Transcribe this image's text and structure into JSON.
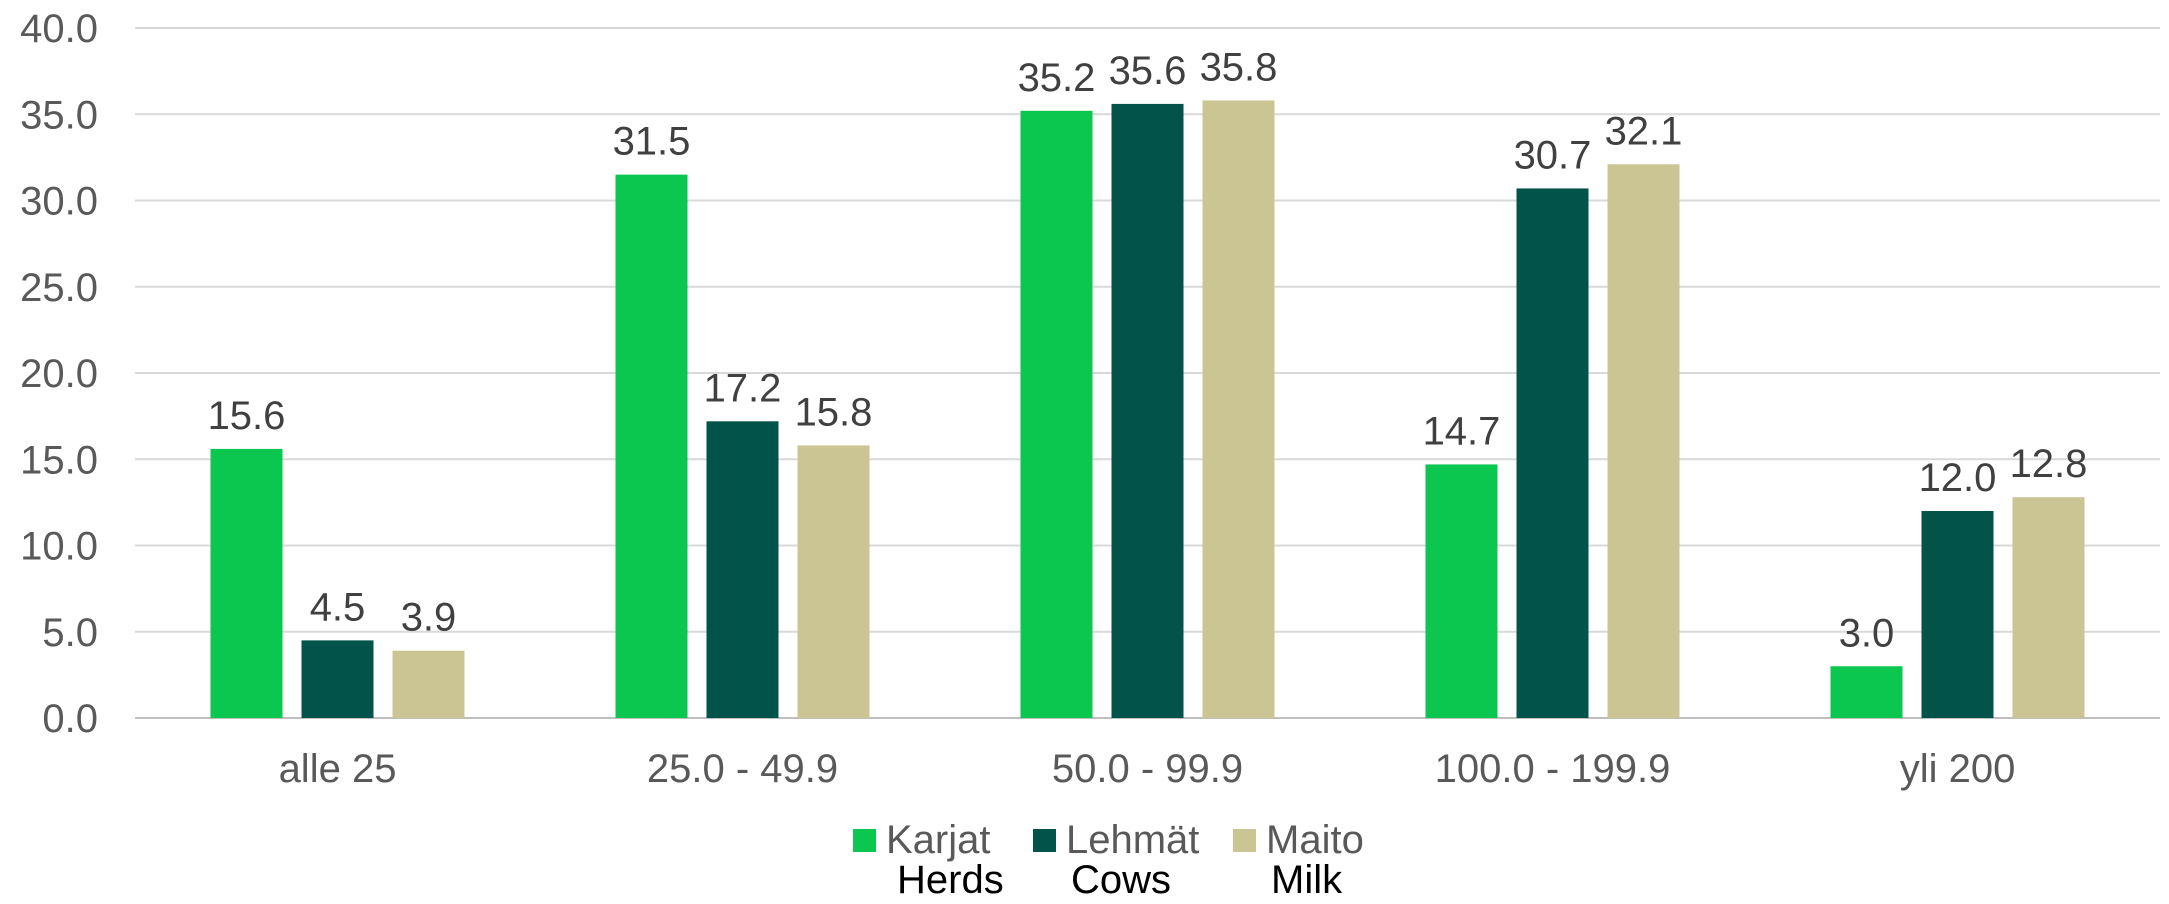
{
  "chart_data": {
    "type": "bar",
    "categories": [
      "alle 25",
      "25.0 - 49.9",
      "50.0 - 99.9",
      "100.0 - 199.9",
      "yli 200"
    ],
    "series": [
      {
        "name": "Karjat",
        "subtitle": "Herds",
        "color": "#0BC64F",
        "values": [
          15.6,
          31.5,
          35.2,
          14.7,
          3.0
        ]
      },
      {
        "name": "Lehmät",
        "subtitle": "Cows",
        "color": "#02534A",
        "values": [
          4.5,
          17.2,
          35.6,
          30.7,
          12.0
        ]
      },
      {
        "name": "Maito",
        "subtitle": "Milk",
        "color": "#CBC594",
        "values": [
          3.9,
          15.8,
          35.8,
          32.1,
          12.8
        ]
      }
    ],
    "yticks": [
      "0.0",
      "5.0",
      "10.0",
      "15.0",
      "20.0",
      "25.0",
      "30.0",
      "35.0",
      "40.0"
    ],
    "ylim": [
      0,
      40
    ],
    "grid": true,
    "legend_position": "bottom",
    "title": "",
    "xlabel": "",
    "ylabel": ""
  }
}
